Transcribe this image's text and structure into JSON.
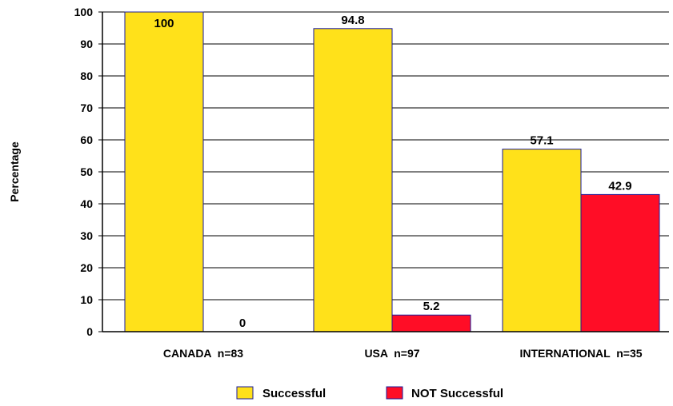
{
  "chart_data": {
    "type": "bar",
    "categories": [
      "CANADA  n=83",
      "USA  n=97",
      "INTERNATIONAL  n=35"
    ],
    "series": [
      {
        "name": "Successful",
        "values": [
          100,
          94.8,
          57.1
        ],
        "color": "#FFE11A"
      },
      {
        "name": "NOT Successful",
        "values": [
          0,
          5.2,
          42.9
        ],
        "color": "#FF0D26"
      }
    ],
    "data_labels": [
      [
        "100",
        "94.8",
        "57.1"
      ],
      [
        "0",
        "5.2",
        "42.9"
      ]
    ],
    "ylabel": "Percentage",
    "ylim": [
      0,
      100
    ],
    "yticks": [
      0,
      10,
      20,
      30,
      40,
      50,
      60,
      70,
      80,
      90,
      100
    ],
    "grid": true,
    "legend_position": "bottom",
    "bar_outline_color": "#1A1A99"
  }
}
